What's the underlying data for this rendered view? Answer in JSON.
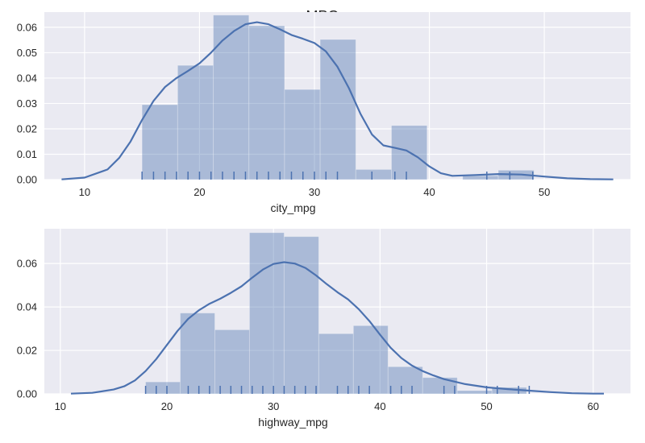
{
  "title": "MPG",
  "chart_data": [
    {
      "type": "histogram",
      "xlabel": "city_mpg",
      "ylabel": "",
      "xlim": [
        6.5,
        57.5
      ],
      "ylim": [
        0,
        0.066
      ],
      "xticks": [
        10,
        20,
        30,
        40,
        50
      ],
      "yticks": [
        0.0,
        0.01,
        0.02,
        0.03,
        0.04,
        0.05,
        0.06
      ],
      "ytick_labels": [
        "0.00",
        "0.01",
        "0.02",
        "0.03",
        "0.04",
        "0.05",
        "0.06"
      ],
      "grid": true,
      "bins": [
        {
          "x0": 15.0,
          "x1": 18.1,
          "density": 0.0295
        },
        {
          "x0": 18.1,
          "x1": 21.2,
          "density": 0.045
        },
        {
          "x0": 21.2,
          "x1": 24.3,
          "density": 0.0648
        },
        {
          "x0": 24.3,
          "x1": 27.4,
          "density": 0.0606
        },
        {
          "x0": 27.4,
          "x1": 30.5,
          "density": 0.0355
        },
        {
          "x0": 30.5,
          "x1": 33.6,
          "density": 0.0552
        },
        {
          "x0": 33.6,
          "x1": 36.7,
          "density": 0.004
        },
        {
          "x0": 36.7,
          "x1": 39.8,
          "density": 0.0213
        },
        {
          "x0": 39.8,
          "x1": 42.9,
          "density": 0.0
        },
        {
          "x0": 42.9,
          "x1": 46.0,
          "density": 0.0015
        },
        {
          "x0": 46.0,
          "x1": 49.1,
          "density": 0.0037
        }
      ],
      "kde": {
        "x": [
          8,
          10,
          12,
          13,
          14,
          15,
          16,
          17,
          18,
          19,
          20,
          21,
          22,
          23,
          24,
          25,
          26,
          27,
          28,
          29,
          30,
          31,
          32,
          33,
          34,
          35,
          36,
          37,
          38,
          39,
          40,
          41,
          42,
          44,
          46,
          48,
          50,
          52,
          54,
          56
        ],
        "y": [
          0.0001,
          0.0008,
          0.004,
          0.0085,
          0.015,
          0.0235,
          0.031,
          0.0365,
          0.04,
          0.0428,
          0.0458,
          0.05,
          0.0548,
          0.0585,
          0.0612,
          0.062,
          0.0612,
          0.0592,
          0.057,
          0.0555,
          0.0538,
          0.0505,
          0.0445,
          0.036,
          0.026,
          0.0178,
          0.0135,
          0.0125,
          0.0115,
          0.0088,
          0.0052,
          0.0025,
          0.0015,
          0.0018,
          0.0022,
          0.002,
          0.0012,
          0.0005,
          0.0002,
          0.0001
        ]
      },
      "rug": [
        15,
        16,
        17,
        18,
        19,
        20,
        21,
        22,
        23,
        24,
        25,
        26,
        27,
        28,
        29,
        30,
        31,
        32,
        35,
        37,
        38,
        45,
        47,
        49
      ]
    },
    {
      "type": "histogram",
      "xlabel": "highway_mpg",
      "ylabel": "",
      "xlim": [
        8.5,
        63.5
      ],
      "ylim": [
        0,
        0.076
      ],
      "xticks": [
        10,
        20,
        30,
        40,
        50,
        60
      ],
      "yticks": [
        0.0,
        0.02,
        0.04,
        0.06
      ],
      "ytick_labels": [
        "0.00",
        "0.02",
        "0.04",
        "0.06"
      ],
      "grid": true,
      "bins": [
        {
          "x0": 18.0,
          "x1": 21.25,
          "density": 0.0055
        },
        {
          "x0": 21.25,
          "x1": 24.5,
          "density": 0.0372
        },
        {
          "x0": 24.5,
          "x1": 27.75,
          "density": 0.0295
        },
        {
          "x0": 27.75,
          "x1": 31.0,
          "density": 0.0742
        },
        {
          "x0": 31.0,
          "x1": 34.25,
          "density": 0.0724
        },
        {
          "x0": 34.25,
          "x1": 37.5,
          "density": 0.0277
        },
        {
          "x0": 37.5,
          "x1": 40.75,
          "density": 0.0314
        },
        {
          "x0": 40.75,
          "x1": 44.0,
          "density": 0.0125
        },
        {
          "x0": 44.0,
          "x1": 47.25,
          "density": 0.0075
        },
        {
          "x0": 47.25,
          "x1": 50.5,
          "density": 0.0015
        },
        {
          "x0": 50.5,
          "x1": 53.75,
          "density": 0.003
        }
      ],
      "kde": {
        "x": [
          11,
          13,
          15,
          16,
          17,
          18,
          19,
          20,
          21,
          22,
          23,
          24,
          25,
          26,
          27,
          28,
          29,
          30,
          31,
          32,
          33,
          34,
          35,
          36,
          37,
          38,
          39,
          40,
          41,
          42,
          43,
          44,
          45,
          46,
          48,
          50,
          52,
          54,
          56,
          58,
          60,
          61
        ],
        "y": [
          0.0001,
          0.0005,
          0.002,
          0.0035,
          0.0062,
          0.0105,
          0.016,
          0.0225,
          0.029,
          0.0345,
          0.0385,
          0.0415,
          0.0438,
          0.0465,
          0.0495,
          0.0535,
          0.0572,
          0.0598,
          0.0606,
          0.06,
          0.058,
          0.0545,
          0.0505,
          0.0468,
          0.0435,
          0.039,
          0.0335,
          0.0272,
          0.0212,
          0.0165,
          0.013,
          0.0105,
          0.0085,
          0.0068,
          0.0045,
          0.003,
          0.0022,
          0.0015,
          0.0008,
          0.0003,
          0.0001,
          0.0001
        ]
      },
      "rug": [
        18,
        19,
        20,
        22,
        23,
        24,
        25,
        26,
        27,
        28,
        29,
        30,
        31,
        32,
        33,
        34,
        36,
        37,
        38,
        39,
        41,
        42,
        43,
        46,
        47,
        50,
        51,
        53,
        54
      ]
    }
  ]
}
